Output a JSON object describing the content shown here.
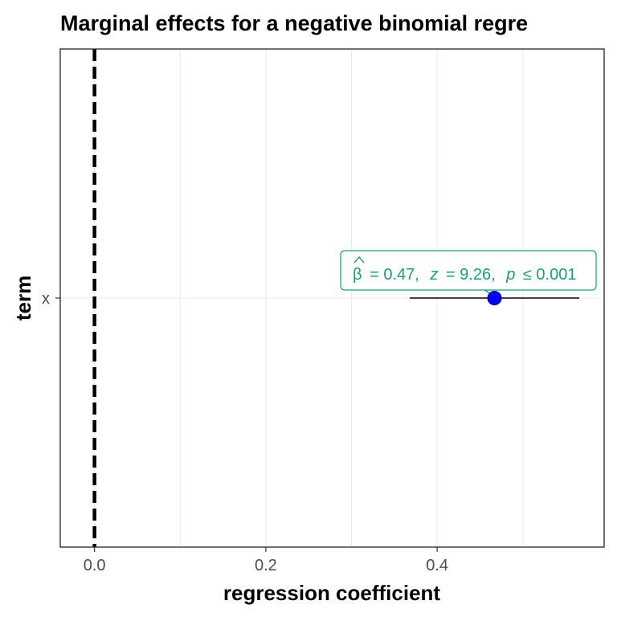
{
  "chart_data": {
    "type": "scatter",
    "title": "Marginal effects for a negative binomial regre",
    "xlabel": "regression coefficient",
    "ylabel": "term",
    "xlim": [
      -0.04,
      0.595
    ],
    "x_ticks": [
      0.0,
      0.2,
      0.4
    ],
    "x_tick_labels": [
      "0.0",
      "0.2",
      "0.4"
    ],
    "categories": [
      "x"
    ],
    "points": [
      {
        "term": "x",
        "estimate": 0.467,
        "conf_low": 0.368,
        "conf_high": 0.566
      }
    ],
    "reference_line": {
      "x": 0,
      "style": "dashed"
    },
    "annotation": {
      "beta_symbol": "β",
      "beta_value": "= 0.47,",
      "z_symbol": "z",
      "z_value": "= 9.26,",
      "p_symbol": "p",
      "p_value": "≤ 0.001"
    },
    "grid": true,
    "legend": "none",
    "colors": {
      "point": "#0000ff",
      "annotation": "#1b9e77",
      "errorbar": "#000000",
      "reference_line": "#000000"
    }
  }
}
